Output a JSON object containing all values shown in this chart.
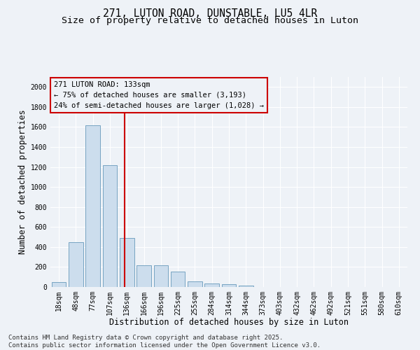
{
  "title_line1": "271, LUTON ROAD, DUNSTABLE, LU5 4LR",
  "title_line2": "Size of property relative to detached houses in Luton",
  "xlabel": "Distribution of detached houses by size in Luton",
  "ylabel": "Number of detached properties",
  "categories": [
    "18sqm",
    "48sqm",
    "77sqm",
    "107sqm",
    "136sqm",
    "166sqm",
    "196sqm",
    "225sqm",
    "255sqm",
    "284sqm",
    "314sqm",
    "344sqm",
    "373sqm",
    "403sqm",
    "432sqm",
    "462sqm",
    "492sqm",
    "521sqm",
    "551sqm",
    "580sqm",
    "610sqm"
  ],
  "values": [
    50,
    450,
    1620,
    1220,
    490,
    215,
    215,
    155,
    55,
    35,
    30,
    15,
    0,
    0,
    0,
    0,
    0,
    0,
    0,
    0,
    0
  ],
  "bar_color": "#ccdded",
  "bar_edge_color": "#6699bb",
  "vline_color": "#cc0000",
  "vline_pos": 3.87,
  "annotation_line1": "271 LUTON ROAD: 133sqm",
  "annotation_line2": "← 75% of detached houses are smaller (3,193)",
  "annotation_line3": "24% of semi-detached houses are larger (1,028) →",
  "annotation_box_color": "#cc0000",
  "ylim": [
    0,
    2100
  ],
  "yticks": [
    0,
    200,
    400,
    600,
    800,
    1000,
    1200,
    1400,
    1600,
    1800,
    2000
  ],
  "footer_line1": "Contains HM Land Registry data © Crown copyright and database right 2025.",
  "footer_line2": "Contains public sector information licensed under the Open Government Licence v3.0.",
  "bg_color": "#eef2f7",
  "grid_color": "#ffffff",
  "title_fontsize": 10.5,
  "subtitle_fontsize": 9.5,
  "axis_label_fontsize": 8.5,
  "tick_fontsize": 7,
  "annotation_fontsize": 7.5,
  "footer_fontsize": 6.5
}
